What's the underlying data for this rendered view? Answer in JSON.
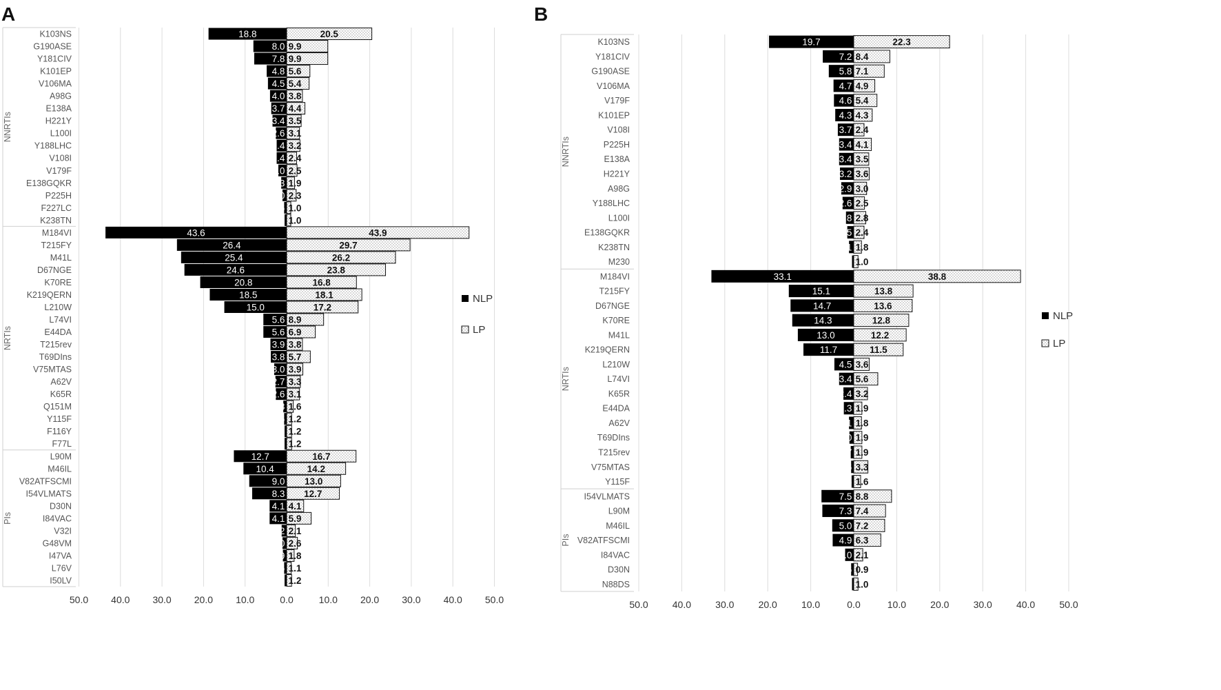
{
  "legend": {
    "nlp_label": "NLP",
    "lp_label": "LP"
  },
  "chart_data": [
    {
      "panel": "A",
      "type": "bar",
      "orientation": "horizontal",
      "diverging": true,
      "xlim": [
        -50,
        50
      ],
      "tick_labels": [
        "50.0",
        "40.0",
        "30.0",
        "20.0",
        "10.0",
        "0.0",
        "10.0",
        "20.0",
        "30.0",
        "40.0",
        "50.0"
      ],
      "groups": [
        {
          "name": "NNRTIs",
          "categories": [
            "K103NS",
            "G190ASE",
            "Y181CIV",
            "K101EP",
            "V106MA",
            "A98G",
            "E138A",
            "H221Y",
            "L100I",
            "Y188LHC",
            "V108I",
            "V179F",
            "E138GQKR",
            "P225H",
            "F227LC",
            "K238TN"
          ],
          "nlp": [
            18.8,
            8.0,
            7.8,
            4.8,
            4.5,
            4.0,
            3.7,
            3.4,
            2.6,
            2.4,
            2.4,
            2.0,
            1.3,
            1.0,
            0.6,
            0.5
          ],
          "lp": [
            20.5,
            9.9,
            9.9,
            5.6,
            5.4,
            3.8,
            4.4,
            3.5,
            3.1,
            3.2,
            2.4,
            2.5,
            1.9,
            2.3,
            1.0,
            1.0
          ],
          "nlp_labels": [
            "18.8",
            "8.0",
            "7.8",
            "4.8",
            "4.5",
            "4.0",
            "3.7",
            "3.4",
            "2.6",
            "2.4",
            "2.4",
            "2.0",
            "1.3",
            "1.0",
            "0.6",
            "0.5"
          ],
          "lp_labels": [
            "20.5",
            "9.9",
            "9.9",
            "5.6",
            "5.4",
            "3.8",
            "4.4",
            "3.5",
            "3.1",
            "3.2",
            "2.4",
            "2.5",
            "1.9",
            "2.3",
            "1.0",
            "1.0"
          ]
        },
        {
          "name": "NRTIs",
          "categories": [
            "M184VI",
            "T215FY",
            "M41L",
            "D67NGE",
            "K70RE",
            "K219QERN",
            "L210W",
            "L74VI",
            "E44DA",
            "T215rev",
            "T69DIns",
            "V75MTAS",
            "A62V",
            "K65R",
            "Q151M",
            "Y115F",
            "F116Y",
            "F77L"
          ],
          "nlp": [
            43.6,
            26.4,
            25.4,
            24.6,
            20.8,
            18.5,
            15.0,
            5.6,
            5.6,
            3.9,
            3.8,
            3.0,
            2.7,
            2.6,
            0.8,
            0.6,
            0.5,
            0.5
          ],
          "lp": [
            43.9,
            29.7,
            26.2,
            23.8,
            16.8,
            18.1,
            17.2,
            8.9,
            6.9,
            3.8,
            5.7,
            3.9,
            3.3,
            3.1,
            1.6,
            1.2,
            1.2,
            1.2
          ],
          "nlp_labels": [
            "43.6",
            "26.4",
            "25.4",
            "24.6",
            "20.8",
            "18.5",
            "15.0",
            "5.6",
            "5.6",
            "3.9",
            "3.8",
            "3.0",
            "2.7",
            "2.6",
            "0.8",
            "0.6",
            "0.5",
            "0.5"
          ],
          "lp_labels": [
            "43.9",
            "29.7",
            "26.2",
            "23.8",
            "16.8",
            "18.1",
            "17.2",
            "8.9",
            "6.9",
            "3.8",
            "5.7",
            "3.9",
            "3.3",
            "3.1",
            "1.6",
            "1.2",
            "1.2",
            "1.2"
          ]
        },
        {
          "name": "PIs",
          "categories": [
            "L90M",
            "M46IL",
            "V82ATFSCMI",
            "I54VLMATS",
            "D30N",
            "I84VAC",
            "V32I",
            "G48VM",
            "I47VA",
            "L76V",
            "I50LV"
          ],
          "nlp": [
            12.7,
            10.4,
            9.0,
            8.3,
            4.1,
            4.1,
            1.2,
            1.0,
            0.9,
            0.6,
            0.5
          ],
          "lp": [
            16.7,
            14.2,
            13.0,
            12.7,
            4.1,
            5.9,
            2.1,
            2.6,
            1.8,
            1.1,
            1.2
          ],
          "nlp_labels": [
            "12.7",
            "10.4",
            "9.0",
            "8.3",
            "4.1",
            "4.1",
            "1.2",
            "1.0",
            "0.9",
            "0.6",
            "0.5"
          ],
          "lp_labels": [
            "16.7",
            "14.2",
            "13.0",
            "12.7",
            "4.1",
            "5.9",
            "2.1",
            "2.6",
            "1.8",
            "1.1",
            "1.2"
          ]
        }
      ]
    },
    {
      "panel": "B",
      "type": "bar",
      "orientation": "horizontal",
      "diverging": true,
      "xlim": [
        -50,
        50
      ],
      "tick_labels": [
        "50.0",
        "40.0",
        "30.0",
        "20.0",
        "10.0",
        "0.0",
        "10.0",
        "20.0",
        "30.0",
        "40.0",
        "50.0"
      ],
      "groups": [
        {
          "name": "NNRTIs",
          "categories": [
            "K103NS",
            "Y181CIV",
            "G190ASE",
            "V106MA",
            "V179F",
            "K101EP",
            "V108I",
            "P225H",
            "E138A",
            "H221Y",
            "A98G",
            "Y188LHC",
            "L100I",
            "E138GQKR",
            "K238TN",
            "M230"
          ],
          "nlp": [
            19.7,
            7.2,
            5.8,
            4.7,
            4.6,
            4.3,
            3.7,
            3.4,
            3.4,
            3.2,
            2.9,
            2.6,
            1.8,
            1.5,
            1.1,
            0.4
          ],
          "lp": [
            22.3,
            8.4,
            7.1,
            4.9,
            5.4,
            4.3,
            2.4,
            4.1,
            3.5,
            3.6,
            3.0,
            2.5,
            2.8,
            2.4,
            1.8,
            1.0
          ],
          "nlp_labels": [
            "19.7",
            "7.2",
            "5.8",
            "4.7",
            "4.6",
            "4.3",
            "3.7",
            "3.4",
            "3.4",
            "3.2",
            "2.9",
            "2.6",
            "1.8",
            "1.5",
            "1.1",
            "0.4"
          ],
          "lp_labels": [
            "22.3",
            "8.4",
            "7.1",
            "4.9",
            "5.4",
            "4.3",
            "2.4",
            "4.1",
            "3.5",
            "3.6",
            "3.0",
            "2.5",
            "2.8",
            "2.4",
            "1.8",
            "1.0"
          ]
        },
        {
          "name": "NRTIs",
          "categories": [
            "M184VI",
            "T215FY",
            "D67NGE",
            "K70RE",
            "M41L",
            "K219QERN",
            "L210W",
            "L74VI",
            "K65R",
            "E44DA",
            "A62V",
            "T69DIns",
            "T215rev",
            "V75MTAS",
            "Y115F"
          ],
          "nlp": [
            33.1,
            15.1,
            14.7,
            14.3,
            13.0,
            11.7,
            4.5,
            3.4,
            2.4,
            2.3,
            1.1,
            1.0,
            0.7,
            0.6,
            0.5
          ],
          "lp": [
            38.8,
            13.8,
            13.6,
            12.8,
            12.2,
            11.5,
            3.6,
            5.6,
            3.2,
            1.9,
            1.8,
            1.9,
            1.9,
            3.3,
            1.6
          ],
          "nlp_labels": [
            "33.1",
            "15.1",
            "14.7",
            "14.3",
            "13.0",
            "11.7",
            "4.5",
            "3.4",
            "2.4",
            "2.3",
            "1.1",
            "1.0",
            "0.7",
            "0.6",
            "0.5"
          ],
          "lp_labels": [
            "38.8",
            "13.8",
            "13.6",
            "12.8",
            "12.2",
            "11.5",
            "3.6",
            "5.6",
            "3.2",
            "1.9",
            "1.8",
            "1.9",
            "1.9",
            "3.3",
            "1.6"
          ]
        },
        {
          "name": "PIs",
          "categories": [
            "I54VLMATS",
            "L90M",
            "M46IL",
            "V82ATFSCMI",
            "I84VAC",
            "D30N",
            "N88DS"
          ],
          "nlp": [
            7.5,
            7.3,
            5.0,
            4.9,
            2.0,
            0.6,
            0.4
          ],
          "lp": [
            8.8,
            7.4,
            7.2,
            6.3,
            2.1,
            0.9,
            1.0
          ],
          "nlp_labels": [
            "7.5",
            "7.3",
            "5.0",
            "4.9",
            "2.0",
            "0.6",
            "0.4"
          ],
          "lp_labels": [
            "8.8",
            "7.4",
            "7.2",
            "6.3",
            "2.1",
            "0.9",
            "1.0"
          ]
        }
      ]
    }
  ]
}
